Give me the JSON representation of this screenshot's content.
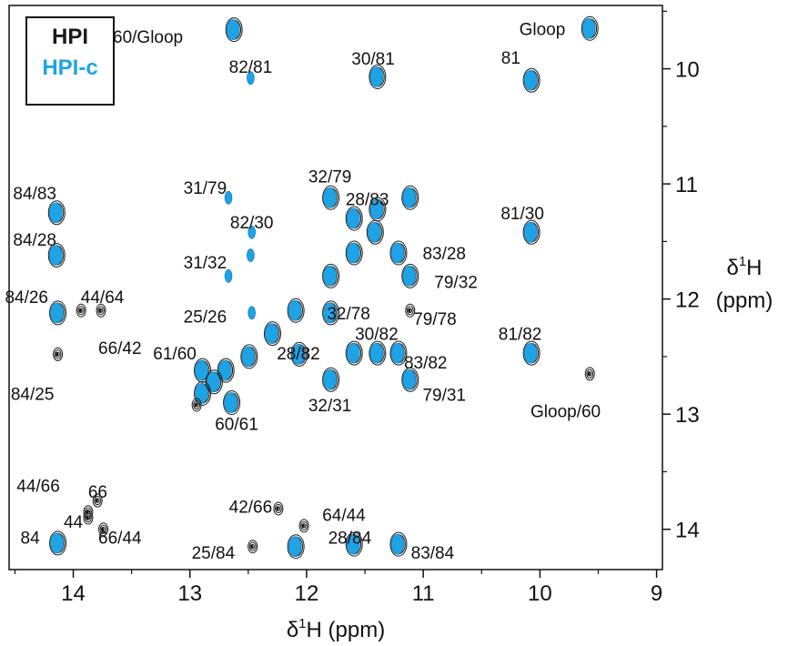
{
  "chart_data": {
    "type": "scatter",
    "title": "",
    "xlabel": {
      "prefix": "δ",
      "sup": "1",
      "suffix": "H (ppm)"
    },
    "ylabel": {
      "prefix": "δ",
      "sup": "1",
      "line1_suffix": "H",
      "line2": "(ppm)"
    },
    "xlim": [
      14.55,
      8.95
    ],
    "ylim": [
      9.45,
      14.35
    ],
    "x_ticks": [
      14,
      13,
      12,
      11,
      10,
      9
    ],
    "y_ticks": [
      10,
      11,
      12,
      13,
      14
    ],
    "legend": {
      "placement": "top-left",
      "entries": [
        {
          "name": "HPI",
          "color": "#1a1a1a"
        },
        {
          "name": "HPI-c",
          "color": "#1ea3e6"
        }
      ]
    },
    "colors": {
      "HPI": "#1a1a1a",
      "HPI-c": "#1ea3e6"
    },
    "peaks": [
      {
        "label": "Gloop",
        "x": 9.58,
        "y": 9.65,
        "type": "both",
        "lx": 9.98,
        "ly": 9.65
      },
      {
        "label": "60/Gloop",
        "x": 12.63,
        "y": 9.66,
        "type": "both",
        "lx": 13.36,
        "ly": 9.72
      },
      {
        "label": "82/81",
        "x": 12.48,
        "y": 10.08,
        "type": "cyan",
        "lx": 12.48,
        "ly": 9.98
      },
      {
        "label": "30/81",
        "x": 11.4,
        "y": 10.07,
        "type": "both",
        "lx": 11.43,
        "ly": 9.91
      },
      {
        "label": "81",
        "x": 10.08,
        "y": 10.1,
        "type": "both",
        "lx": 10.25,
        "ly": 9.9
      },
      {
        "label": "84/83",
        "x": 14.15,
        "y": 11.25,
        "type": "both",
        "lx": 14.33,
        "ly": 11.08
      },
      {
        "label": "31/79",
        "x": 12.67,
        "y": 11.12,
        "type": "cyan",
        "lx": 12.87,
        "ly": 11.03
      },
      {
        "label": "32/79",
        "x": 11.8,
        "y": 11.12,
        "type": "both",
        "lx": 11.8,
        "ly": 10.93
      },
      {
        "label": "28/83",
        "x": 11.4,
        "y": 11.22,
        "type": "both",
        "lx": 11.48,
        "ly": 11.13
      },
      {
        "label": "",
        "x": 11.6,
        "y": 11.3,
        "type": "both",
        "lx": 11.6,
        "ly": 11.3
      },
      {
        "label": "",
        "x": 11.12,
        "y": 11.12,
        "type": "both",
        "lx": 11.12,
        "ly": 11.12
      },
      {
        "label": "82/30",
        "x": 12.47,
        "y": 11.42,
        "type": "cyan",
        "lx": 12.47,
        "ly": 11.33
      },
      {
        "label": "",
        "x": 11.42,
        "y": 11.42,
        "type": "both",
        "lx": 11.42,
        "ly": 11.42
      },
      {
        "label": "81/30",
        "x": 10.08,
        "y": 11.42,
        "type": "both",
        "lx": 10.15,
        "ly": 11.25
      },
      {
        "label": "84/28",
        "x": 14.15,
        "y": 11.62,
        "type": "both",
        "lx": 14.33,
        "ly": 11.48
      },
      {
        "label": "31/32",
        "x": 12.67,
        "y": 11.8,
        "type": "cyan",
        "lx": 12.87,
        "ly": 11.68
      },
      {
        "label": "",
        "x": 12.48,
        "y": 11.62,
        "type": "cyan",
        "lx": 12.48,
        "ly": 11.62
      },
      {
        "label": "",
        "x": 11.6,
        "y": 11.6,
        "type": "both",
        "lx": 11.6,
        "ly": 11.6
      },
      {
        "label": "",
        "x": 11.22,
        "y": 11.6,
        "type": "both",
        "lx": 11.22,
        "ly": 11.6
      },
      {
        "label": "83/28",
        "x": 11.22,
        "y": 11.6,
        "type": "none",
        "lx": 10.82,
        "ly": 11.6
      },
      {
        "label": "",
        "x": 11.8,
        "y": 11.8,
        "type": "both",
        "lx": 11.8,
        "ly": 11.8
      },
      {
        "label": "79/32",
        "x": 11.12,
        "y": 11.8,
        "type": "both",
        "lx": 10.72,
        "ly": 11.85
      },
      {
        "label": "84/26",
        "x": 14.14,
        "y": 12.12,
        "type": "both",
        "lx": 14.4,
        "ly": 11.98
      },
      {
        "label": "44/64",
        "x": 13.94,
        "y": 12.1,
        "type": "black",
        "lx": 13.75,
        "ly": 11.98
      },
      {
        "label": "",
        "x": 13.77,
        "y": 12.1,
        "type": "black",
        "lx": 13.77,
        "ly": 12.1
      },
      {
        "label": "25/26",
        "x": 12.47,
        "y": 12.12,
        "type": "cyan",
        "lx": 12.87,
        "ly": 12.15
      },
      {
        "label": "",
        "x": 12.1,
        "y": 12.1,
        "type": "both",
        "lx": 12.1,
        "ly": 12.1
      },
      {
        "label": "32/78",
        "x": 11.8,
        "y": 12.12,
        "type": "both",
        "lx": 11.64,
        "ly": 12.12
      },
      {
        "label": "79/78",
        "x": 11.12,
        "y": 12.1,
        "type": "black",
        "lx": 10.9,
        "ly": 12.17
      },
      {
        "label": "66/42",
        "x": 14.14,
        "y": 12.48,
        "type": "black",
        "lx": 13.6,
        "ly": 12.42
      },
      {
        "label": "",
        "x": 12.3,
        "y": 12.3,
        "type": "both",
        "lx": 12.3,
        "ly": 12.3
      },
      {
        "label": "61/60",
        "x": 12.9,
        "y": 12.62,
        "type": "both",
        "lx": 13.13,
        "ly": 12.47
      },
      {
        "label": "28/82",
        "x": 12.07,
        "y": 12.48,
        "type": "both",
        "lx": 12.07,
        "ly": 12.47
      },
      {
        "label": "30/82",
        "x": 11.6,
        "y": 12.47,
        "type": "both",
        "lx": 11.4,
        "ly": 12.3
      },
      {
        "label": "",
        "x": 11.4,
        "y": 12.47,
        "type": "both",
        "lx": 11.4,
        "ly": 12.47
      },
      {
        "label": "",
        "x": 11.22,
        "y": 12.47,
        "type": "both",
        "lx": 11.22,
        "ly": 12.47
      },
      {
        "label": "83/82",
        "x": 11.22,
        "y": 12.47,
        "type": "none",
        "lx": 10.98,
        "ly": 12.55
      },
      {
        "label": "81/82",
        "x": 10.08,
        "y": 12.47,
        "type": "both",
        "lx": 10.17,
        "ly": 12.3
      },
      {
        "label": "",
        "x": 12.5,
        "y": 12.5,
        "type": "both",
        "lx": 12.5,
        "ly": 12.5
      },
      {
        "label": "",
        "x": 12.7,
        "y": 12.62,
        "type": "both",
        "lx": 12.7,
        "ly": 12.62
      },
      {
        "label": "",
        "x": 12.8,
        "y": 12.72,
        "type": "both",
        "lx": 12.8,
        "ly": 12.72
      },
      {
        "label": "",
        "x": 12.9,
        "y": 12.82,
        "type": "both",
        "lx": 12.9,
        "ly": 12.82
      },
      {
        "label": "84/25",
        "x": 14.14,
        "y": 12.48,
        "type": "none",
        "lx": 14.35,
        "ly": 12.82
      },
      {
        "label": "32/31",
        "x": 11.8,
        "y": 12.7,
        "type": "both",
        "lx": 11.8,
        "ly": 12.92
      },
      {
        "label": "79/31",
        "x": 11.12,
        "y": 12.7,
        "type": "both",
        "lx": 10.82,
        "ly": 12.83
      },
      {
        "label": "Gloop/60",
        "x": 9.58,
        "y": 12.65,
        "type": "black",
        "lx": 9.78,
        "ly": 12.97
      },
      {
        "label": "60/61",
        "x": 12.65,
        "y": 12.9,
        "type": "both",
        "lx": 12.6,
        "ly": 13.08
      },
      {
        "label": "",
        "x": 12.95,
        "y": 12.92,
        "type": "black",
        "lx": 12.95,
        "ly": 12.92
      },
      {
        "label": "44/66",
        "x": 13.88,
        "y": 13.85,
        "type": "black",
        "lx": 14.3,
        "ly": 13.62
      },
      {
        "label": "66",
        "x": 13.8,
        "y": 13.75,
        "type": "black",
        "lx": 13.79,
        "ly": 13.67
      },
      {
        "label": "44",
        "x": 13.88,
        "y": 13.9,
        "type": "black",
        "lx": 14.0,
        "ly": 13.93
      },
      {
        "label": "84",
        "x": 14.14,
        "y": 14.12,
        "type": "both",
        "lx": 14.37,
        "ly": 14.07
      },
      {
        "label": "66/44",
        "x": 13.75,
        "y": 14.0,
        "type": "black",
        "lx": 13.6,
        "ly": 14.07
      },
      {
        "label": "42/66",
        "x": 12.25,
        "y": 13.82,
        "type": "black",
        "lx": 12.48,
        "ly": 13.8
      },
      {
        "label": "64/44",
        "x": 12.03,
        "y": 13.97,
        "type": "black",
        "lx": 11.68,
        "ly": 13.87
      },
      {
        "label": "28/84",
        "x": 11.6,
        "y": 14.13,
        "type": "both",
        "lx": 11.63,
        "ly": 14.07
      },
      {
        "label": "25/84",
        "x": 12.47,
        "y": 14.15,
        "type": "black",
        "lx": 12.8,
        "ly": 14.2
      },
      {
        "label": "",
        "x": 12.1,
        "y": 14.15,
        "type": "both",
        "lx": 12.1,
        "ly": 14.15
      },
      {
        "label": "83/84",
        "x": 11.22,
        "y": 14.13,
        "type": "both",
        "lx": 10.92,
        "ly": 14.2
      }
    ]
  }
}
